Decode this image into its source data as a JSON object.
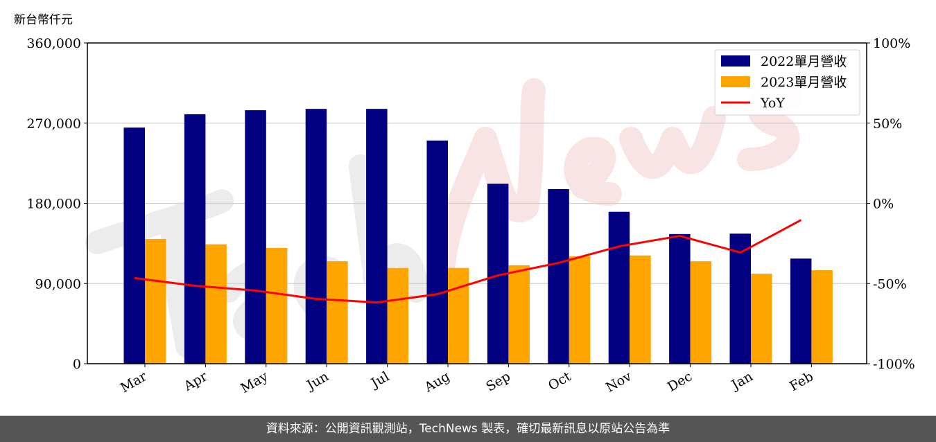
{
  "chart_data": {
    "type": "bar",
    "y_unit_label": "新台幣仟元",
    "categories": [
      "Mar",
      "Apr",
      "May",
      "Jun",
      "Jul",
      "Aug",
      "Sep",
      "Oct",
      "Nov",
      "Dec",
      "Jan",
      "Feb"
    ],
    "series": [
      {
        "name": "2022單月營收",
        "type": "bar",
        "color": "#000080",
        "axis": "left",
        "values": [
          265000,
          280000,
          284500,
          286000,
          286000,
          250500,
          202000,
          196000,
          170500,
          145500,
          146000,
          118000
        ]
      },
      {
        "name": "2023單月營收",
        "type": "bar",
        "color": "#FFA500",
        "axis": "left",
        "values": [
          140000,
          134000,
          130000,
          115000,
          107500,
          107500,
          110500,
          120500,
          121500,
          115000,
          101000,
          105000
        ]
      },
      {
        "name": "YoY",
        "type": "line",
        "color": "#FF0000",
        "axis": "right",
        "values": [
          -46.6,
          -51.4,
          -54.4,
          -59.6,
          -61.8,
          -56.6,
          -44.9,
          -37.1,
          -26.8,
          -20.3,
          -30.7,
          -10.4
        ]
      }
    ],
    "left_axis": {
      "ylim": [
        0,
        360000
      ],
      "ticks": [
        "0",
        "90,000",
        "180,000",
        "270,000",
        "360,000"
      ]
    },
    "right_axis": {
      "ylim": [
        -100,
        100
      ],
      "ticks": [
        "-100%",
        "-50%",
        "0%",
        "50%",
        "100%"
      ]
    },
    "grid": "horizontal",
    "legend": "top-right"
  },
  "watermark": "TechNews",
  "footer": "資料來源：公開資訊觀測站，TechNews 製表，確切最新訊息以原站公告為準"
}
